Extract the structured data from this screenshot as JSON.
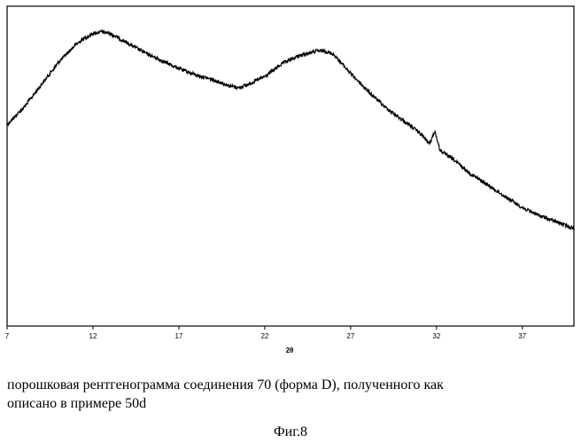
{
  "chart_data": {
    "type": "line",
    "xlabel": "2θ",
    "ylabel": "",
    "xlim": [
      7,
      40
    ],
    "ylim": [
      0,
      100
    ],
    "xticks": [
      "7",
      "12",
      "17",
      "22",
      "27",
      "32",
      "37"
    ],
    "grid": false,
    "legend": "none",
    "series": [
      {
        "color": "#000000",
        "x": [
          7,
          8,
          9,
          10,
          11,
          11.5,
          12,
          12.5,
          13,
          13.5,
          14,
          15,
          16,
          17,
          18,
          19,
          20,
          20.5,
          21,
          22,
          23,
          24,
          25,
          25.5,
          26,
          27,
          28,
          29,
          30,
          31,
          31.6,
          31.9,
          32.2,
          33,
          34,
          35,
          36,
          37,
          38,
          39,
          40
        ],
        "y": [
          63,
          68.5,
          75.5,
          82.5,
          88,
          90,
          91.5,
          92,
          91.5,
          90,
          88.5,
          85.5,
          83,
          80.5,
          78.5,
          77,
          75,
          74.5,
          75.5,
          78,
          82,
          84.5,
          86,
          86,
          85,
          79,
          73.5,
          68.5,
          64.5,
          60.5,
          57,
          61,
          55,
          52,
          47.5,
          44,
          40.5,
          37,
          34.5,
          32.5,
          30.5
        ]
      }
    ]
  },
  "caption": {
    "line1": "порошковая рентгенограмма соединения 70 (форма D), полученного как",
    "line2": "описано в примере 50d"
  },
  "figure_label": "Фиг.8"
}
